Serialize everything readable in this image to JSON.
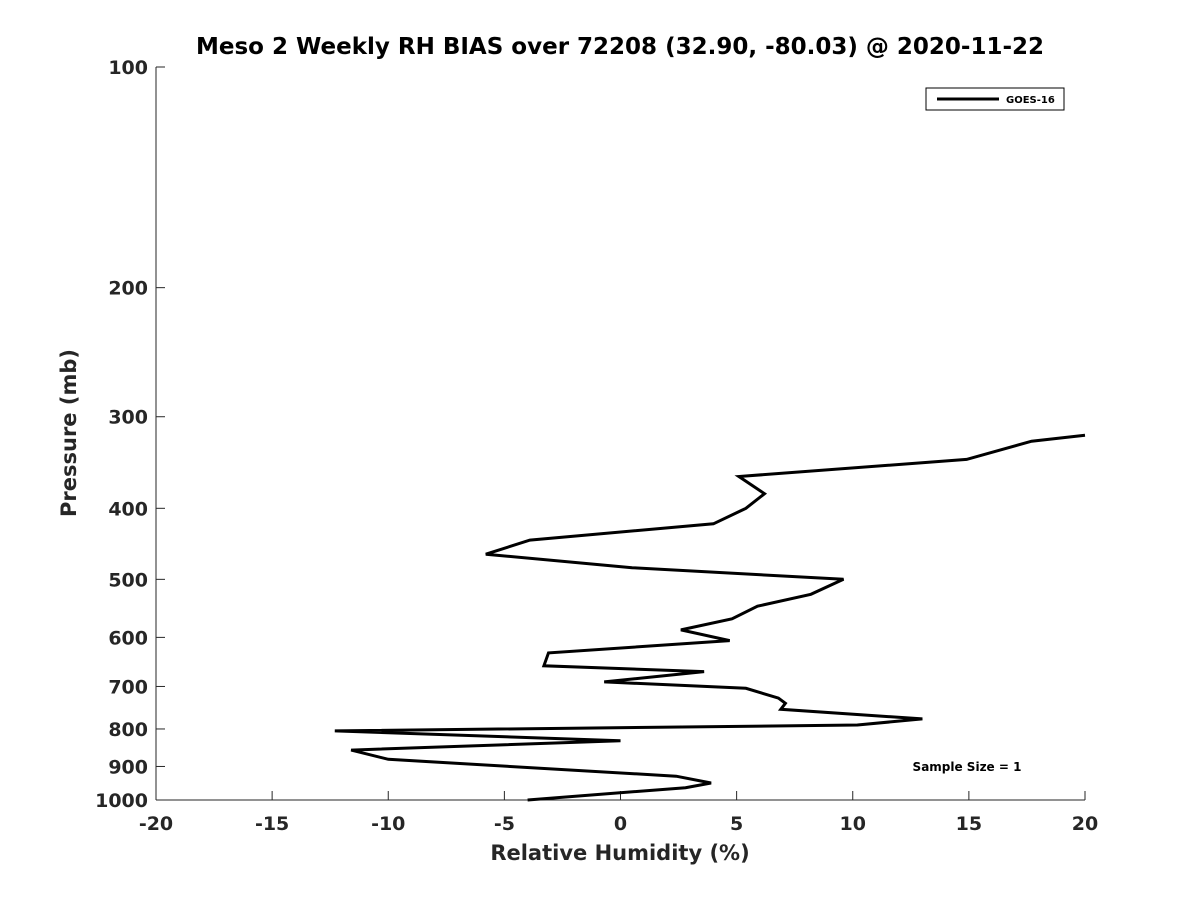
{
  "chart_data": {
    "type": "line",
    "title": "Meso 2 Weekly RH BIAS over 72208 (32.90, -80.03) @ 2020-11-22",
    "xlabel": "Relative Humidity (%)",
    "ylabel": "Pressure (mb)",
    "xlim": [
      -20,
      20
    ],
    "ylim": [
      100,
      1000
    ],
    "yscale": "log",
    "y_reversed": true,
    "grid": false,
    "legend_position": "top-right",
    "x_ticks": [
      "-20",
      "-15",
      "-10",
      "-5",
      "0",
      "5",
      "10",
      "15",
      "20"
    ],
    "y_ticks": [
      "100",
      "200",
      "300",
      "400",
      "500",
      "600",
      "700",
      "800",
      "900",
      "1000"
    ],
    "annotation": "Sample Size = 1",
    "series": [
      {
        "name": "GOES-16",
        "color": "#000000",
        "x": [
          20.0,
          17.7,
          14.9,
          5.1,
          6.2,
          5.4,
          4.0,
          -3.9,
          -5.8,
          0.5,
          9.6,
          8.2,
          5.9,
          4.8,
          2.6,
          4.7,
          -3.1,
          -3.3,
          3.6,
          -0.7,
          5.4,
          6.8,
          7.1,
          6.9,
          13.0,
          10.2,
          -12.3,
          0.0,
          -11.6,
          -10.0,
          2.4,
          3.9,
          2.8,
          -4.0
        ],
        "y": [
          318,
          324,
          343,
          362,
          382,
          400,
          420,
          442,
          462,
          482,
          500,
          524,
          544,
          566,
          586,
          606,
          630,
          656,
          668,
          690,
          704,
          726,
          738,
          752,
          775,
          790,
          805,
          830,
          855,
          880,
          928,
          948,
          962,
          1000
        ]
      }
    ]
  }
}
